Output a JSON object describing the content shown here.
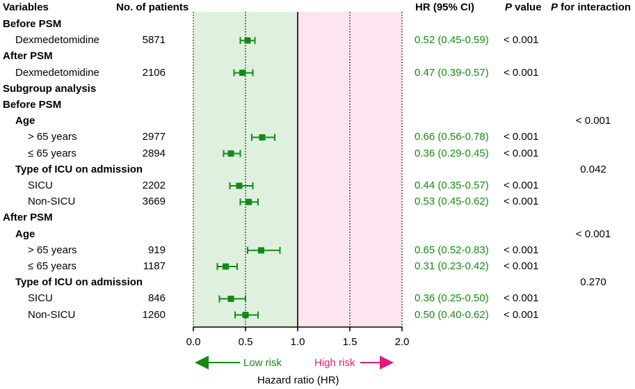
{
  "headers": {
    "variables": "Variables",
    "patients": "No. of patients",
    "hr": "HR (95% CI)",
    "p_italic": "P",
    "p_rest": " value",
    "pint_italic": "P",
    "pint_rest": " for interaction"
  },
  "rows": [
    {
      "label": "Before PSM",
      "level": 0,
      "bold": true,
      "n": "",
      "hr_text": "",
      "p": "",
      "pint": ""
    },
    {
      "label": "Dexmedetomidine",
      "level": 1,
      "bold": false,
      "n": "5871",
      "hr_text": "0.52 (0.45-0.59)",
      "p": "< 0.001",
      "pint": ""
    },
    {
      "label": "After PSM",
      "level": 0,
      "bold": true,
      "n": "",
      "hr_text": "",
      "p": "",
      "pint": ""
    },
    {
      "label": "Dexmedetomidine",
      "level": 1,
      "bold": false,
      "n": "2106",
      "hr_text": "0.47 (0.39-0.57)",
      "p": "< 0.001",
      "pint": ""
    },
    {
      "label": "Subgroup analysis",
      "level": 0,
      "bold": true,
      "n": "",
      "hr_text": "",
      "p": "",
      "pint": ""
    },
    {
      "label": "Before PSM",
      "level": 0,
      "bold": true,
      "n": "",
      "hr_text": "",
      "p": "",
      "pint": ""
    },
    {
      "label": "Age",
      "level": 1,
      "bold": true,
      "n": "",
      "hr_text": "",
      "p": "",
      "pint": "< 0.001"
    },
    {
      "label": "> 65 years",
      "level": 2,
      "bold": false,
      "n": "2977",
      "hr_text": "0.66 (0.56-0.78)",
      "p": "< 0.001",
      "pint": ""
    },
    {
      "label": "≤ 65 years",
      "level": 2,
      "bold": false,
      "n": "2894",
      "hr_text": "0.36 (0.29-0.45)",
      "p": "< 0.001",
      "pint": ""
    },
    {
      "label": "Type of ICU on admission",
      "level": 1,
      "bold": true,
      "n": "",
      "hr_text": "",
      "p": "",
      "pint": "0.042"
    },
    {
      "label": "SICU",
      "level": 2,
      "bold": false,
      "n": "2202",
      "hr_text": "0.44 (0.35-0.57)",
      "p": "< 0.001",
      "pint": ""
    },
    {
      "label": "Non-SICU",
      "level": 2,
      "bold": false,
      "n": "3669",
      "hr_text": "0.53 (0.45-0.62)",
      "p": "< 0.001",
      "pint": ""
    },
    {
      "label": "After PSM",
      "level": 0,
      "bold": true,
      "n": "",
      "hr_text": "",
      "p": "",
      "pint": ""
    },
    {
      "label": "Age",
      "level": 1,
      "bold": true,
      "n": "",
      "hr_text": "",
      "p": "",
      "pint": "< 0.001"
    },
    {
      "label": "> 65 years",
      "level": 2,
      "bold": false,
      "n": "919",
      "hr_text": "0.65 (0.52-0.83)",
      "p": "< 0.001",
      "pint": ""
    },
    {
      "label": "≤ 65 years",
      "level": 2,
      "bold": false,
      "n": "1187",
      "hr_text": "0.31 (0.23-0.42)",
      "p": "< 0.001",
      "pint": ""
    },
    {
      "label": "Type of ICU on admission",
      "level": 1,
      "bold": true,
      "n": "",
      "hr_text": "",
      "p": "",
      "pint": "0.270"
    },
    {
      "label": "SICU",
      "level": 2,
      "bold": false,
      "n": "846",
      "hr_text": "0.36 (0.25-0.50)",
      "p": "< 0.001",
      "pint": ""
    },
    {
      "label": "Non-SICU",
      "level": 2,
      "bold": false,
      "n": "1260",
      "hr_text": "0.50 (0.40-0.62)",
      "p": "< 0.001",
      "pint": ""
    }
  ],
  "chart_data": {
    "type": "forest",
    "xlabel": "Hazard ratio (HR)",
    "xlim": [
      0.0,
      2.0
    ],
    "ticks": [
      0.0,
      0.5,
      1.0,
      1.5,
      2.0
    ],
    "tick_labels": [
      "0.0",
      "0.5",
      "1.0",
      "1.5",
      "2.0"
    ],
    "reference_line": 1.0,
    "dotted_lines": [
      0.0,
      0.5,
      1.5,
      2.0
    ],
    "regions": [
      {
        "from": 0.0,
        "to": 1.0,
        "color": "#dff0df"
      },
      {
        "from": 1.0,
        "to": 2.0,
        "color": "#fde4f1"
      }
    ],
    "annotations": {
      "low": "Low risk",
      "high": "High risk",
      "low_color": "#138a13",
      "high_color": "#e6197d"
    },
    "marker_color": "#138a13",
    "points": [
      {
        "row": 1,
        "hr": 0.52,
        "lo": 0.45,
        "hi": 0.59
      },
      {
        "row": 3,
        "hr": 0.47,
        "lo": 0.39,
        "hi": 0.57
      },
      {
        "row": 7,
        "hr": 0.66,
        "lo": 0.56,
        "hi": 0.78
      },
      {
        "row": 8,
        "hr": 0.36,
        "lo": 0.29,
        "hi": 0.45
      },
      {
        "row": 10,
        "hr": 0.44,
        "lo": 0.35,
        "hi": 0.57
      },
      {
        "row": 11,
        "hr": 0.53,
        "lo": 0.45,
        "hi": 0.62
      },
      {
        "row": 14,
        "hr": 0.65,
        "lo": 0.52,
        "hi": 0.83
      },
      {
        "row": 15,
        "hr": 0.31,
        "lo": 0.23,
        "hi": 0.42
      },
      {
        "row": 17,
        "hr": 0.36,
        "lo": 0.25,
        "hi": 0.5
      },
      {
        "row": 18,
        "hr": 0.5,
        "lo": 0.4,
        "hi": 0.62
      }
    ]
  }
}
